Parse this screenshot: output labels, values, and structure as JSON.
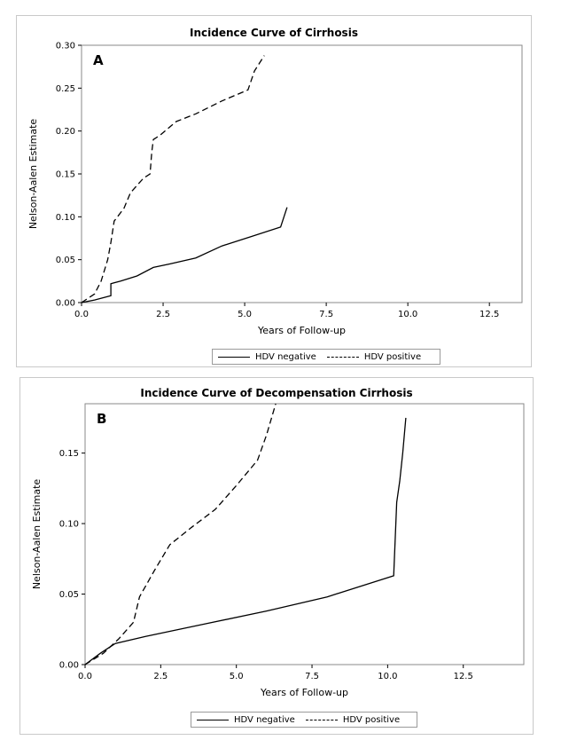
{
  "chart_data": [
    {
      "type": "line",
      "panel_label": "A",
      "title": "Incidence Curve of Cirrhosis",
      "xlabel": "Years of Follow-up",
      "ylabel": "Nelson-Aalen Estimate",
      "xlim": [
        0,
        13.5
      ],
      "ylim": [
        0,
        0.3
      ],
      "xticks": [
        "0.0",
        "2.5",
        "5.0",
        "7.5",
        "10.0",
        "12.5"
      ],
      "yticks": [
        "0.00",
        "0.05",
        "0.10",
        "0.15",
        "0.20",
        "0.25",
        "0.30"
      ],
      "legend_position": "bottom",
      "series": [
        {
          "name": "HDV negative",
          "style": "solid",
          "x": [
            0,
            0.4,
            0.9,
            0.9,
            1.2,
            1.7,
            2.2,
            2.7,
            3.5,
            4.3,
            5.2,
            6.1,
            6.3
          ],
          "y": [
            0,
            0.003,
            0.008,
            0.022,
            0.025,
            0.031,
            0.041,
            0.045,
            0.052,
            0.066,
            0.077,
            0.088,
            0.111
          ]
        },
        {
          "name": "HDV positive",
          "style": "dashed",
          "x": [
            0,
            0.4,
            0.6,
            0.8,
            0.9,
            1.0,
            1.3,
            1.5,
            1.9,
            2.1,
            2.15,
            2.2,
            2.4,
            2.9,
            3.5,
            4.3,
            5.1,
            5.3,
            5.6
          ],
          "y": [
            0,
            0.01,
            0.025,
            0.05,
            0.07,
            0.095,
            0.11,
            0.128,
            0.145,
            0.15,
            0.175,
            0.19,
            0.195,
            0.211,
            0.22,
            0.235,
            0.248,
            0.27,
            0.288
          ]
        }
      ]
    },
    {
      "type": "line",
      "panel_label": "B",
      "title": "Incidence Curve of Decompensation Cirrhosis",
      "xlabel": "Years of Follow-up",
      "ylabel": "Nelson-Aalen Estimate",
      "xlim": [
        0,
        14.5
      ],
      "ylim": [
        0,
        0.185
      ],
      "xticks": [
        "0.0",
        "2.5",
        "5.0",
        "7.5",
        "10.0",
        "12.5"
      ],
      "yticks": [
        "0.00",
        "0.05",
        "0.10",
        "0.15"
      ],
      "legend_position": "bottom",
      "series": [
        {
          "name": "HDV negative",
          "style": "solid",
          "x": [
            0,
            0.5,
            1.0,
            2.0,
            4.0,
            6.0,
            8.0,
            10.2,
            10.3,
            10.4,
            10.5,
            10.6
          ],
          "y": [
            0,
            0.008,
            0.015,
            0.02,
            0.029,
            0.038,
            0.048,
            0.063,
            0.115,
            0.13,
            0.15,
            0.175
          ]
        },
        {
          "name": "HDV positive",
          "style": "dashed",
          "x": [
            0,
            0.6,
            1.1,
            1.6,
            1.8,
            2.3,
            2.8,
            3.5,
            4.3,
            5.0,
            5.7,
            6.0,
            6.3
          ],
          "y": [
            0,
            0.008,
            0.018,
            0.03,
            0.048,
            0.067,
            0.085,
            0.097,
            0.11,
            0.127,
            0.145,
            0.163,
            0.185
          ]
        }
      ]
    }
  ]
}
